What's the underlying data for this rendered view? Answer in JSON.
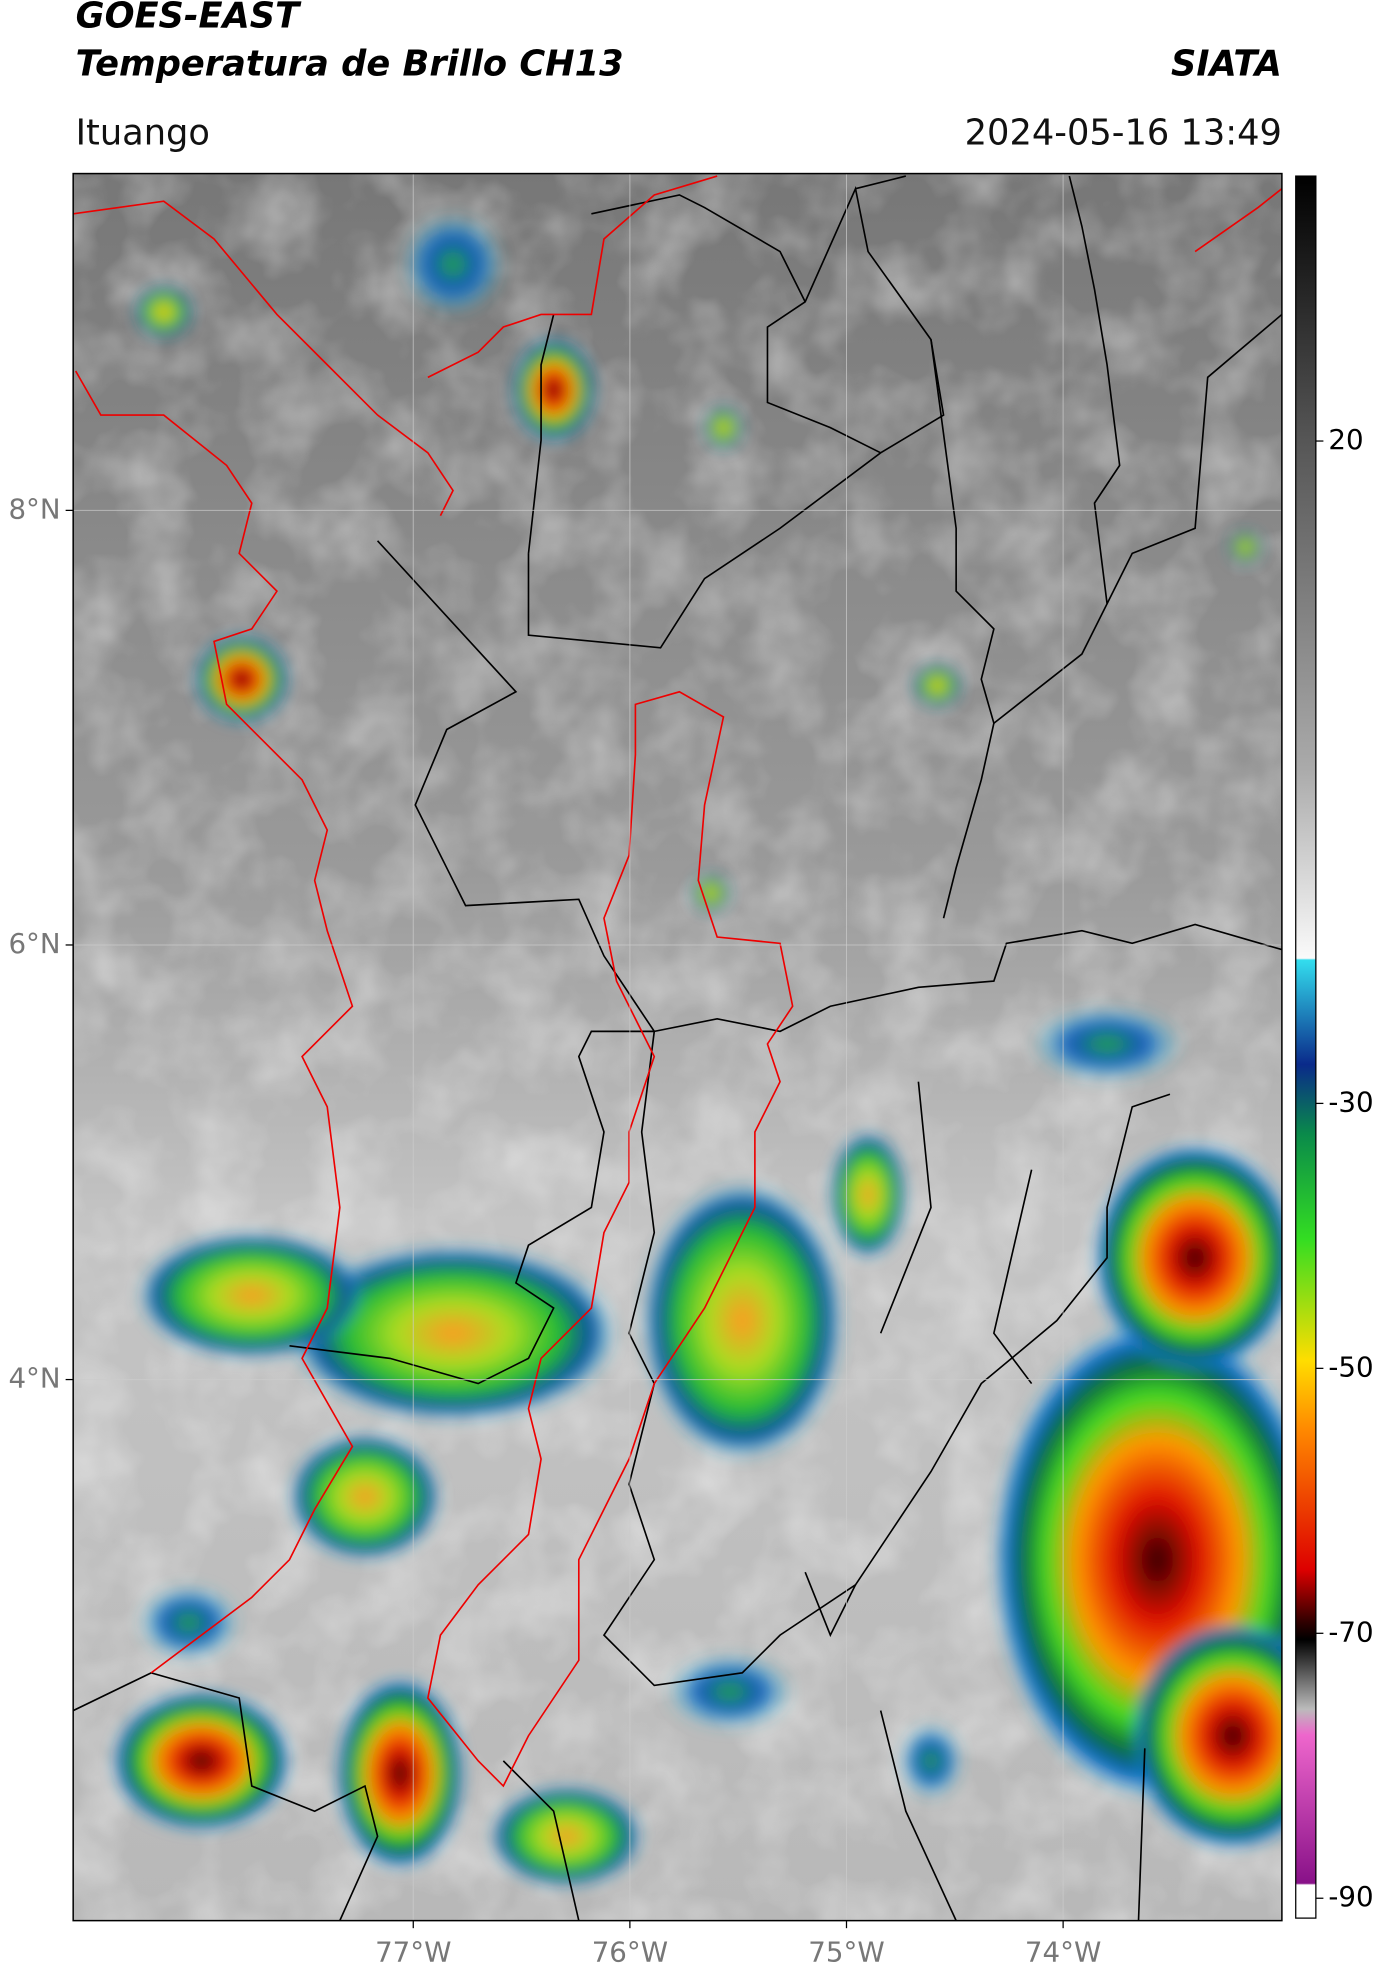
{
  "header": {
    "title_line1": "GOES-EAST",
    "title_line2": "Temperatura de Brillo CH13",
    "organization": "SIATA",
    "location": "Ituango",
    "timestamp": "2024-05-16 13:49"
  },
  "map": {
    "xlim": [
      -78.57,
      -72.99
    ],
    "ylim": [
      1.51,
      9.55
    ],
    "xticks": [
      {
        "value": -77,
        "label": "77°W"
      },
      {
        "value": -76,
        "label": "76°W"
      },
      {
        "value": -75,
        "label": "75°W"
      },
      {
        "value": -74,
        "label": "74°W"
      }
    ],
    "yticks": [
      {
        "value": 8,
        "label": "8°N"
      },
      {
        "value": 6,
        "label": "6°N"
      },
      {
        "value": 4,
        "label": "4°N"
      }
    ]
  },
  "colorbar": {
    "clim": [
      -91.5,
      40
    ],
    "ticks": [
      20,
      -30,
      -50,
      -70,
      -90
    ]
  }
}
